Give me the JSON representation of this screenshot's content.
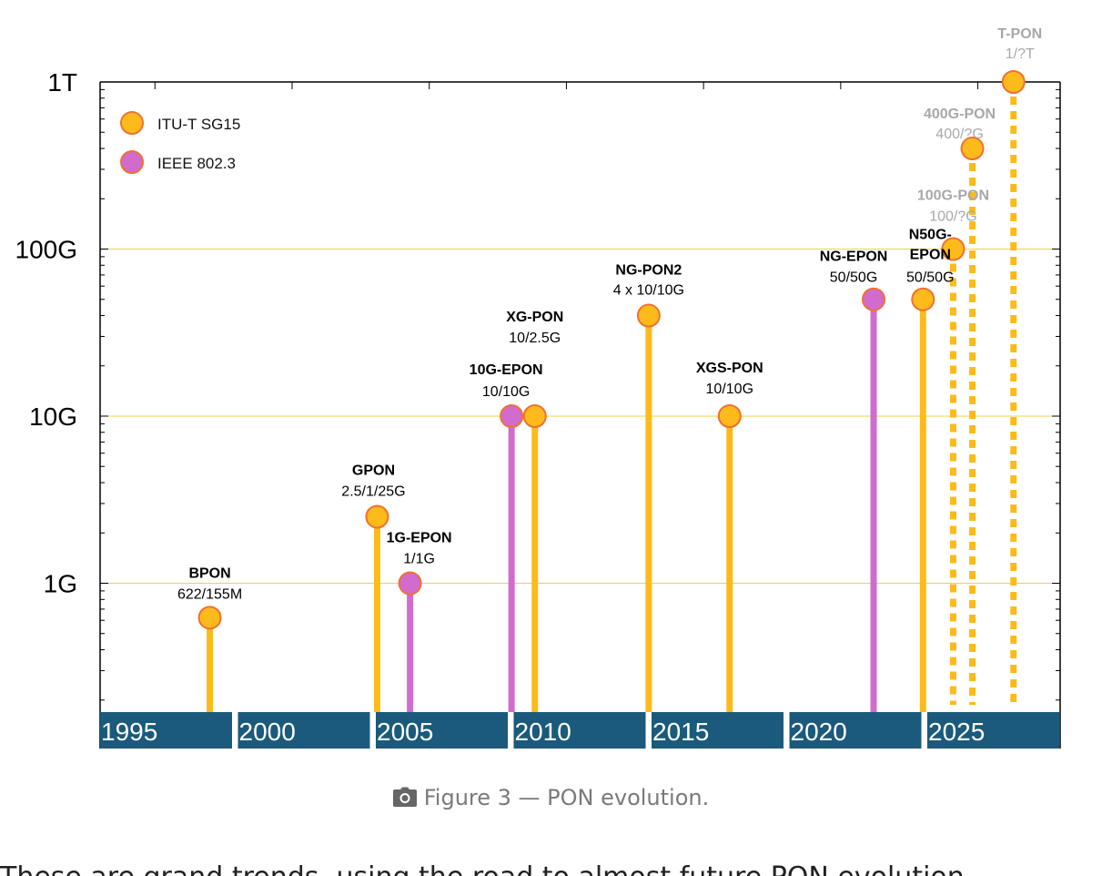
{
  "colors": {
    "itu": "#fcbb1a",
    "itu_stroke": "#f07030",
    "ieee": "#d16bce",
    "future_label": "#a8a8a8",
    "year_band": "#1b5a7c",
    "gridline": "#f5d040"
  },
  "chart_data": {
    "type": "scatter",
    "yscale": "log",
    "ytick_labels": [
      "1G",
      "10G",
      "100G",
      "1T"
    ],
    "ytick_values_gbps": [
      1,
      10,
      100,
      1000
    ],
    "xlim": [
      1993,
      2028
    ],
    "ylim_gbps": [
      0.2,
      1000
    ],
    "year_labels": [
      "1995",
      "2000",
      "2005",
      "2010",
      "2015",
      "2020",
      "2025"
    ],
    "legend": [
      {
        "label": "ITU-T SG15",
        "series": "itu"
      },
      {
        "label": "IEEE 802.3",
        "series": "ieee"
      }
    ],
    "legend_position": "top-left",
    "grid": "horizontal at major ticks",
    "points": [
      {
        "name": "BPON",
        "rate": "622/155M",
        "x": 1997,
        "y": 0.622,
        "series": "itu",
        "future": false
      },
      {
        "name": "GPON",
        "rate": "2.5/1/25G",
        "x": 2003.1,
        "y": 2.5,
        "series": "itu",
        "future": false
      },
      {
        "name": "1G-EPON",
        "rate": "1/1G",
        "x": 2004.3,
        "y": 1.0,
        "series": "ieee",
        "future": false
      },
      {
        "name": "10G-EPON",
        "rate": "10/10G",
        "x": 2008.0,
        "y": 10,
        "series": "ieee",
        "future": false
      },
      {
        "name": "XG-PON",
        "rate": "10/2.5G",
        "x": 2008.85,
        "y": 10,
        "series": "itu",
        "future": false
      },
      {
        "name": "NG-PON2",
        "rate": "4 x 10/10G",
        "x": 2013.0,
        "y": 40,
        "series": "itu",
        "future": false
      },
      {
        "name": "XGS-PON",
        "rate": "10/10G",
        "x": 2015.95,
        "y": 10,
        "series": "itu",
        "future": false
      },
      {
        "name": "NG-EPON",
        "rate": "50/50G",
        "x": 2021.2,
        "y": 50,
        "series": "ieee",
        "future": false
      },
      {
        "name": "N50G-\nEPON",
        "rate": "50/50G",
        "x": 2023.0,
        "y": 50,
        "series": "itu",
        "future": false
      },
      {
        "name": "100G-PON",
        "rate": "100/?G",
        "x": 2024.1,
        "y": 100,
        "series": "itu",
        "future": true
      },
      {
        "name": "400G-PON",
        "rate": "400/?G",
        "x": 2024.8,
        "y": 400,
        "series": "itu",
        "future": true
      },
      {
        "name": "T-PON",
        "rate": "1/?T",
        "x": 2026.3,
        "y": 1000,
        "series": "itu",
        "future": true
      }
    ]
  },
  "caption": {
    "icon": "camera-icon",
    "text": "Figure 3 — PON evolution."
  },
  "body_text": "These are grand trends, using the road to almost future PON evolution"
}
